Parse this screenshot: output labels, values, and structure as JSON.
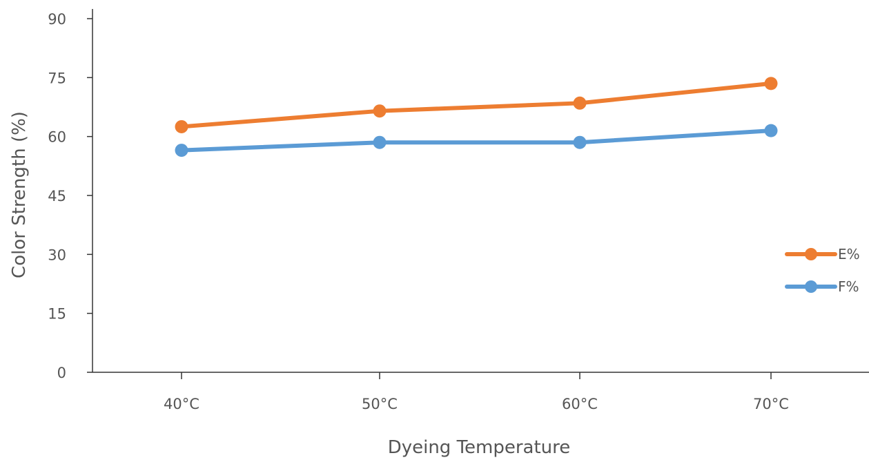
{
  "chart_data": {
    "type": "line",
    "title": "",
    "xlabel": "Dyeing Temperature",
    "ylabel": "Color Strength (%)",
    "categories": [
      "40°C",
      "50°C",
      "60°C",
      "70°C"
    ],
    "ylim": [
      0,
      90
    ],
    "yticks": [
      0,
      15,
      30,
      45,
      60,
      75,
      90
    ],
    "grid": false,
    "legend_position": "right",
    "series": [
      {
        "name": "E%",
        "color": "#ED7D31",
        "values": [
          62.5,
          66.5,
          68.5,
          73.5
        ]
      },
      {
        "name": "F%",
        "color": "#5B9BD5",
        "values": [
          56.5,
          58.5,
          58.5,
          61.5
        ]
      }
    ]
  }
}
